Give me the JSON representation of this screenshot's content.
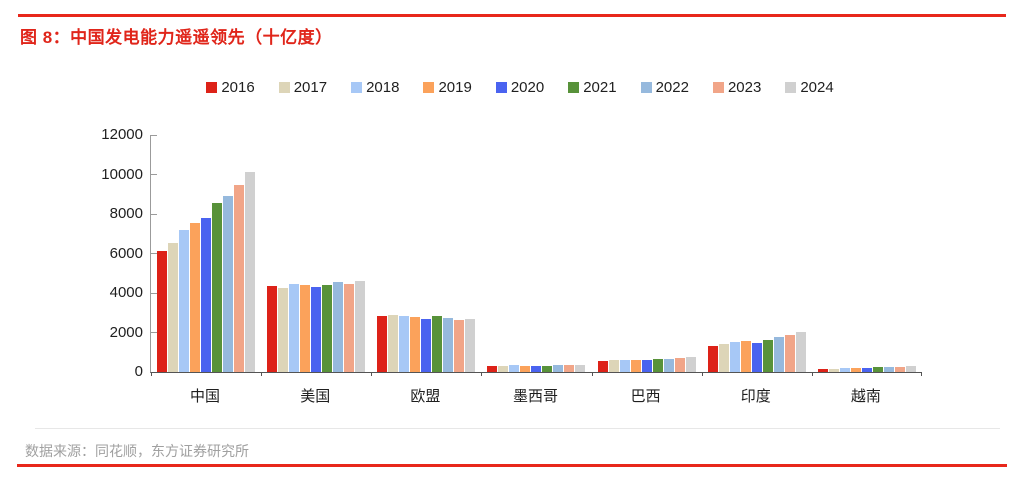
{
  "page": {
    "title": "图 8：中国发电能力遥遥领先（十亿度）",
    "source": "数据来源：同花顺，东方证券研究所"
  },
  "colors": {
    "accent_red": "#e8271b",
    "title_red": "#e0251a",
    "source_gray": "#a0a0a0",
    "y_axis_gray": "#9b9b9b",
    "x_axis_gray": "#545454"
  },
  "chart_data": {
    "type": "bar",
    "title": "中国发电能力遥遥领先（十亿度）",
    "unit": "十亿度",
    "categories": [
      "中国",
      "美国",
      "欧盟",
      "墨西哥",
      "巴西",
      "印度",
      "越南"
    ],
    "series": [
      {
        "name": "2016",
        "color": "#dd2218",
        "values": [
          6130,
          4350,
          2830,
          310,
          580,
          1300,
          160
        ]
      },
      {
        "name": "2017",
        "color": "#ddd5b8",
        "values": [
          6530,
          4270,
          2890,
          320,
          595,
          1420,
          175
        ]
      },
      {
        "name": "2018",
        "color": "#a7c8f6",
        "values": [
          7170,
          4460,
          2860,
          330,
          605,
          1530,
          195
        ]
      },
      {
        "name": "2019",
        "color": "#fba25b",
        "values": [
          7520,
          4390,
          2790,
          325,
          625,
          1590,
          210
        ]
      },
      {
        "name": "2020",
        "color": "#4a63f0",
        "values": [
          7790,
          4280,
          2680,
          305,
          620,
          1480,
          220
        ]
      },
      {
        "name": "2021",
        "color": "#58923a",
        "values": [
          8540,
          4400,
          2840,
          320,
          655,
          1620,
          230
        ]
      },
      {
        "name": "2022",
        "color": "#96b9dd",
        "values": [
          8890,
          4550,
          2740,
          330,
          675,
          1770,
          250
        ]
      },
      {
        "name": "2023",
        "color": "#f1a588",
        "values": [
          9480,
          4480,
          2610,
          335,
          710,
          1890,
          265
        ]
      },
      {
        "name": "2024",
        "color": "#d0d0d0",
        "values": [
          10110,
          4620,
          2690,
          330,
          740,
          2010,
          295
        ]
      }
    ],
    "ylim": [
      0,
      12000
    ],
    "ytick_step": 2000,
    "yticks": [
      0,
      2000,
      4000,
      6000,
      8000,
      10000,
      12000
    ],
    "legend_position": "top",
    "grid": false
  }
}
